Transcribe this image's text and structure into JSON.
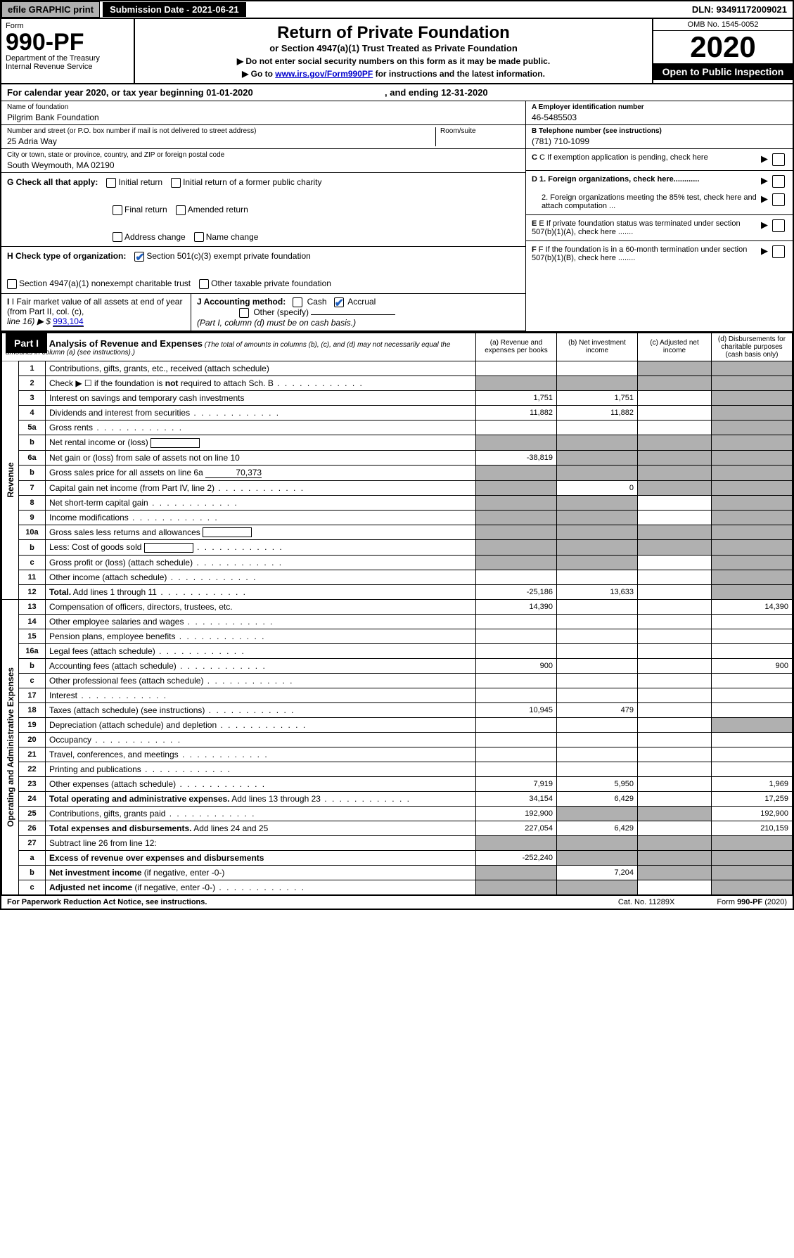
{
  "topbar": {
    "print": "efile GRAPHIC print",
    "submission": "Submission Date - 2021-06-21",
    "dln": "DLN: 93491172009021"
  },
  "header": {
    "form_word": "Form",
    "form_num": "990-PF",
    "dept1": "Department of the Treasury",
    "dept2": "Internal Revenue Service",
    "title": "Return of Private Foundation",
    "subtitle1": "or Section 4947(a)(1) Trust Treated as Private Foundation",
    "subtitle2a": "▶ Do not enter social security numbers on this form as it may be made public.",
    "subtitle2b": "▶ Go to ",
    "subtitle2link": "www.irs.gov/Form990PF",
    "subtitle2c": " for instructions and the latest information.",
    "omb": "OMB No. 1545-0052",
    "year": "2020",
    "open": "Open to Public Inspection"
  },
  "calyear": {
    "text_a": "For calendar year 2020, or tax year beginning ",
    "begin": "01-01-2020",
    "text_b": ", and ending ",
    "end": "12-31-2020"
  },
  "entity": {
    "name_label": "Name of foundation",
    "name": "Pilgrim Bank Foundation",
    "addr_label": "Number and street (or P.O. box number if mail is not delivered to street address)",
    "addr": "25 Adria Way",
    "room_label": "Room/suite",
    "city_label": "City or town, state or province, country, and ZIP or foreign postal code",
    "city": "South Weymouth, MA  02190",
    "ein_label": "A Employer identification number",
    "ein": "46-5485503",
    "phone_label": "B Telephone number (see instructions)",
    "phone": "(781) 710-1099",
    "c_label": "C If exemption application is pending, check here",
    "d1": "D 1. Foreign organizations, check here............",
    "d2": "2. Foreign organizations meeting the 85% test, check here and attach computation ...",
    "e": "E If private foundation status was terminated under section 507(b)(1)(A), check here .......",
    "f": "F If the foundation is in a 60-month termination under section 507(b)(1)(B), check here ........"
  },
  "g": {
    "lead": "G Check all that apply:",
    "initial": "Initial return",
    "initial_former": "Initial return of a former public charity",
    "final": "Final return",
    "amended": "Amended return",
    "addr_change": "Address change",
    "name_change": "Name change"
  },
  "h": {
    "lead": "H Check type of organization:",
    "c3": "Section 501(c)(3) exempt private foundation",
    "a1": "Section 4947(a)(1) nonexempt charitable trust",
    "other": "Other taxable private foundation"
  },
  "i": {
    "lead": "I Fair market value of all assets at end of year (from Part II, col. (c),",
    "line16": "line 16) ▶ $",
    "value": "993,104"
  },
  "j": {
    "lead": "J Accounting method:",
    "cash": "Cash",
    "accrual": "Accrual",
    "other": "Other (specify)",
    "note": "(Part I, column (d) must be on cash basis.)"
  },
  "part1": {
    "label": "Part I",
    "title": "Analysis of Revenue and Expenses",
    "note": "(The total of amounts in columns (b), (c), and (d) may not necessarily equal the amounts in column (a) (see instructions).)",
    "col_a": "(a)   Revenue and expenses per books",
    "col_b": "(b)  Net investment income",
    "col_c": "(c)  Adjusted net income",
    "col_d": "(d)  Disbursements for charitable purposes (cash basis only)"
  },
  "vert": {
    "revenue": "Revenue",
    "expenses": "Operating and Administrative Expenses"
  },
  "rows": [
    {
      "n": "1",
      "d": "Contributions, gifts, grants, etc., received (attach schedule)",
      "a": "",
      "b": "",
      "c": "s",
      "dd": "s"
    },
    {
      "n": "2",
      "d": "Check ▶ ☐ if the foundation is <b>not</b> required to attach Sch. B",
      "a": "s",
      "b": "s",
      "c": "s",
      "dd": "s",
      "dots": true
    },
    {
      "n": "3",
      "d": "Interest on savings and temporary cash investments",
      "a": "1,751",
      "b": "1,751",
      "c": "",
      "dd": "s"
    },
    {
      "n": "4",
      "d": "Dividends and interest from securities",
      "a": "11,882",
      "b": "11,882",
      "c": "",
      "dd": "s",
      "dots": true
    },
    {
      "n": "5a",
      "d": "Gross rents",
      "a": "",
      "b": "",
      "c": "",
      "dd": "s",
      "dots": true
    },
    {
      "n": "b",
      "d": "Net rental income or (loss)",
      "a": "s",
      "b": "s",
      "c": "s",
      "dd": "s",
      "box": true
    },
    {
      "n": "6a",
      "d": "Net gain or (loss) from sale of assets not on line 10",
      "a": "-38,819",
      "b": "s",
      "c": "s",
      "dd": "s"
    },
    {
      "n": "b",
      "d": "Gross sales price for all assets on line 6a",
      "a": "s",
      "b": "s",
      "c": "s",
      "dd": "s",
      "inline": "70,373"
    },
    {
      "n": "7",
      "d": "Capital gain net income (from Part IV, line 2)",
      "a": "s",
      "b": "0",
      "c": "s",
      "dd": "s",
      "dots": true
    },
    {
      "n": "8",
      "d": "Net short-term capital gain",
      "a": "s",
      "b": "s",
      "c": "",
      "dd": "s",
      "dots": true
    },
    {
      "n": "9",
      "d": "Income modifications",
      "a": "s",
      "b": "s",
      "c": "",
      "dd": "s",
      "dots": true
    },
    {
      "n": "10a",
      "d": "Gross sales less returns and allowances",
      "a": "s",
      "b": "s",
      "c": "s",
      "dd": "s",
      "box": true
    },
    {
      "n": "b",
      "d": "Less: Cost of goods sold",
      "a": "s",
      "b": "s",
      "c": "s",
      "dd": "s",
      "dots": true,
      "box": true
    },
    {
      "n": "c",
      "d": "Gross profit or (loss) (attach schedule)",
      "a": "s",
      "b": "s",
      "c": "",
      "dd": "s",
      "dots": true
    },
    {
      "n": "11",
      "d": "Other income (attach schedule)",
      "a": "",
      "b": "",
      "c": "",
      "dd": "s",
      "dots": true
    },
    {
      "n": "12",
      "d": "<b>Total.</b> Add lines 1 through 11",
      "a": "-25,186",
      "b": "13,633",
      "c": "",
      "dd": "s",
      "dots": true
    }
  ],
  "exprows": [
    {
      "n": "13",
      "d": "Compensation of officers, directors, trustees, etc.",
      "a": "14,390",
      "b": "",
      "c": "",
      "dd": "14,390"
    },
    {
      "n": "14",
      "d": "Other employee salaries and wages",
      "a": "",
      "b": "",
      "c": "",
      "dd": "",
      "dots": true
    },
    {
      "n": "15",
      "d": "Pension plans, employee benefits",
      "a": "",
      "b": "",
      "c": "",
      "dd": "",
      "dots": true
    },
    {
      "n": "16a",
      "d": "Legal fees (attach schedule)",
      "a": "",
      "b": "",
      "c": "",
      "dd": "",
      "dots": true
    },
    {
      "n": "b",
      "d": "Accounting fees (attach schedule)",
      "a": "900",
      "b": "",
      "c": "",
      "dd": "900",
      "dots": true
    },
    {
      "n": "c",
      "d": "Other professional fees (attach schedule)",
      "a": "",
      "b": "",
      "c": "",
      "dd": "",
      "dots": true
    },
    {
      "n": "17",
      "d": "Interest",
      "a": "",
      "b": "",
      "c": "",
      "dd": "",
      "dots": true
    },
    {
      "n": "18",
      "d": "Taxes (attach schedule) (see instructions)",
      "a": "10,945",
      "b": "479",
      "c": "",
      "dd": "",
      "dots": true
    },
    {
      "n": "19",
      "d": "Depreciation (attach schedule) and depletion",
      "a": "",
      "b": "",
      "c": "",
      "dd": "s",
      "dots": true
    },
    {
      "n": "20",
      "d": "Occupancy",
      "a": "",
      "b": "",
      "c": "",
      "dd": "",
      "dots": true
    },
    {
      "n": "21",
      "d": "Travel, conferences, and meetings",
      "a": "",
      "b": "",
      "c": "",
      "dd": "",
      "dots": true
    },
    {
      "n": "22",
      "d": "Printing and publications",
      "a": "",
      "b": "",
      "c": "",
      "dd": "",
      "dots": true
    },
    {
      "n": "23",
      "d": "Other expenses (attach schedule)",
      "a": "7,919",
      "b": "5,950",
      "c": "",
      "dd": "1,969",
      "dots": true
    },
    {
      "n": "24",
      "d": "<b>Total operating and administrative expenses.</b> Add lines 13 through 23",
      "a": "34,154",
      "b": "6,429",
      "c": "",
      "dd": "17,259",
      "dots": true
    },
    {
      "n": "25",
      "d": "Contributions, gifts, grants paid",
      "a": "192,900",
      "b": "s",
      "c": "s",
      "dd": "192,900",
      "dots": true
    },
    {
      "n": "26",
      "d": "<b>Total expenses and disbursements.</b> Add lines 24 and 25",
      "a": "227,054",
      "b": "6,429",
      "c": "",
      "dd": "210,159"
    },
    {
      "n": "27",
      "d": "Subtract line 26 from line 12:",
      "a": "s",
      "b": "s",
      "c": "s",
      "dd": "s"
    },
    {
      "n": "a",
      "d": "<b>Excess of revenue over expenses and disbursements</b>",
      "a": "-252,240",
      "b": "s",
      "c": "s",
      "dd": "s"
    },
    {
      "n": "b",
      "d": "<b>Net investment income</b> (if negative, enter -0-)",
      "a": "s",
      "b": "7,204",
      "c": "s",
      "dd": "s"
    },
    {
      "n": "c",
      "d": "<b>Adjusted net income</b> (if negative, enter -0-)",
      "a": "s",
      "b": "s",
      "c": "",
      "dd": "s",
      "dots": true
    }
  ],
  "footer": {
    "left": "For Paperwork Reduction Act Notice, see instructions.",
    "mid": "Cat. No. 11289X",
    "right": "Form 990-PF (2020)"
  },
  "colors": {
    "shaded": "#b0b0b0",
    "link": "#0000cc",
    "check": "#1e5fbf"
  }
}
